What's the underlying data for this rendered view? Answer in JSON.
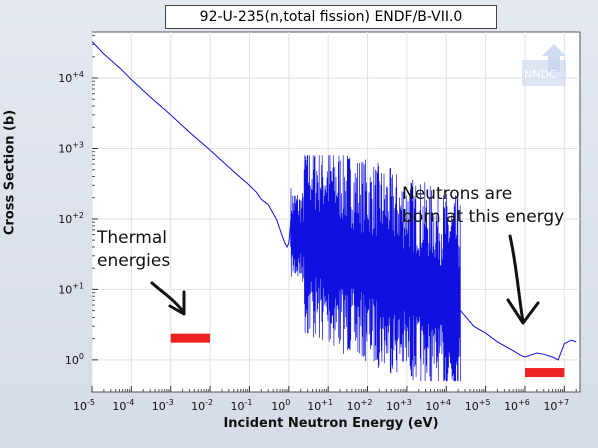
{
  "chart_data": {
    "type": "line",
    "title": "92-U-235(n,total fission) ENDF/B-VII.0",
    "xlabel": "Incident Neutron Energy (eV)",
    "ylabel": "Cross Section (b)",
    "xscale": "log",
    "yscale": "log",
    "xlim": [
      1e-05,
      25000000.0
    ],
    "ylim": [
      0.35,
      45000
    ],
    "x_tick_exponents": [
      -5,
      -4,
      -3,
      -2,
      -1,
      0,
      1,
      2,
      3,
      4,
      5,
      6,
      7
    ],
    "y_tick_exponents": [
      0,
      1,
      2,
      3,
      4
    ],
    "grid": true,
    "series": [
      {
        "color": "#1010e0",
        "x": [
          1e-05,
          2e-05,
          5e-05,
          0.0001,
          0.0003,
          0.001,
          0.003,
          0.01,
          0.0253,
          0.05,
          0.1,
          0.15,
          0.2,
          0.3,
          0.4,
          0.5,
          0.6,
          0.7,
          0.8,
          0.9,
          1.0,
          1.1
        ],
        "y": [
          33000,
          22000,
          14000,
          9500,
          5400,
          3000,
          1700,
          950,
          590,
          420,
          300,
          240,
          190,
          160,
          120,
          95,
          70,
          55,
          45,
          40,
          45,
          80
        ]
      },
      {
        "color": "#1010e0",
        "x": [
          23000.0,
          50000.0,
          100000.0,
          200000.0,
          500000.0,
          800000.0,
          1000000.0,
          2000000.0,
          3000000.0,
          5000000.0,
          7000000.0,
          10000000.0,
          15000000.0,
          20000000.0
        ],
        "y": [
          5,
          3,
          2.4,
          1.8,
          1.35,
          1.15,
          1.1,
          1.25,
          1.2,
          1.1,
          1.0,
          1.7,
          1.9,
          1.8
        ]
      }
    ],
    "resonance_region": {
      "x_start": 1.1,
      "x_end": 23000.0,
      "y_min": 0.5,
      "y_max": 800
    },
    "annotations": [
      {
        "text": "Thermal energies",
        "marker_x": [
          0.001,
          0.01
        ],
        "marker_y": 2.0,
        "marker_color": "#ee2222"
      },
      {
        "text": "Neutrons are born at this energy",
        "marker_x": [
          1000000.0,
          10000000.0
        ],
        "marker_y": 0.65,
        "marker_color": "#ee2222"
      }
    ],
    "watermark": "NNDC"
  }
}
